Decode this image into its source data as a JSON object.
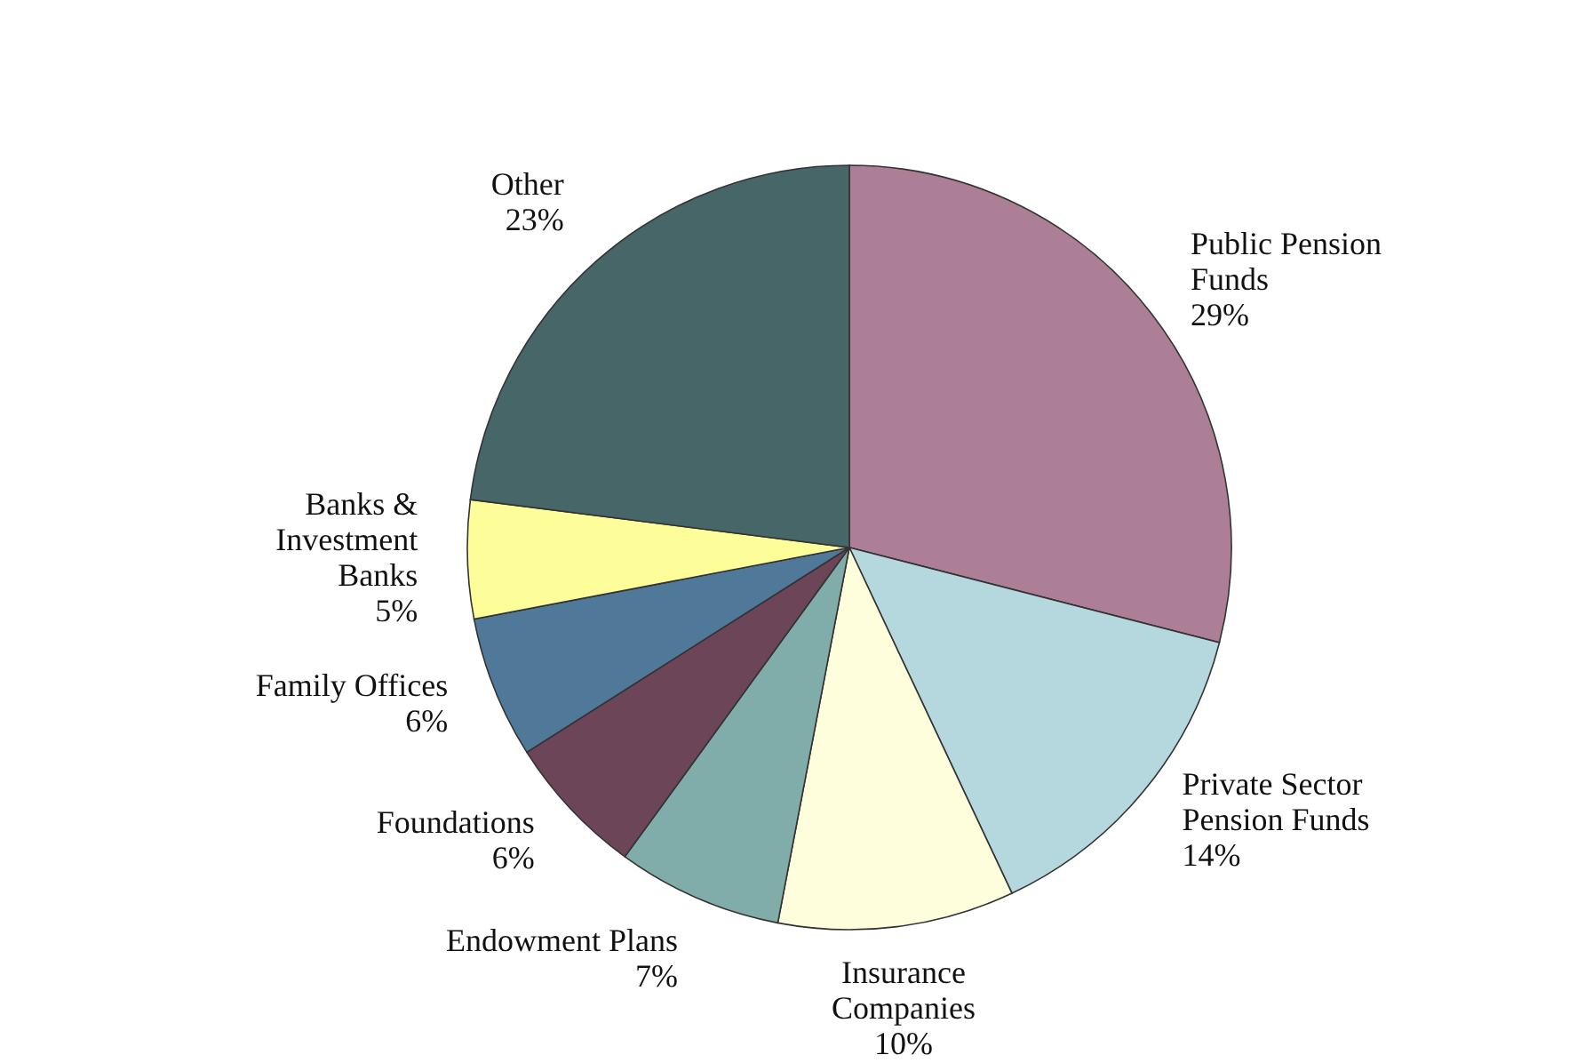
{
  "chart_data": {
    "type": "pie",
    "categories": [
      "Public Pension Funds",
      "Private Sector Pension Funds",
      "Insurance Companies",
      "Endowment Plans",
      "Foundations",
      "Family Offices",
      "Banks & Investment Banks",
      "Other"
    ],
    "values": [
      29,
      14,
      10,
      7,
      6,
      6,
      5,
      23
    ],
    "value_labels": [
      "29%",
      "14%",
      "10%",
      "7%",
      "6%",
      "6%",
      "5%",
      "23%"
    ],
    "colors": [
      "#ad7f96",
      "#b5d8de",
      "#fefedd",
      "#80aca9",
      "#6c4558",
      "#4f7899",
      "#fdfd99",
      "#466668"
    ]
  }
}
